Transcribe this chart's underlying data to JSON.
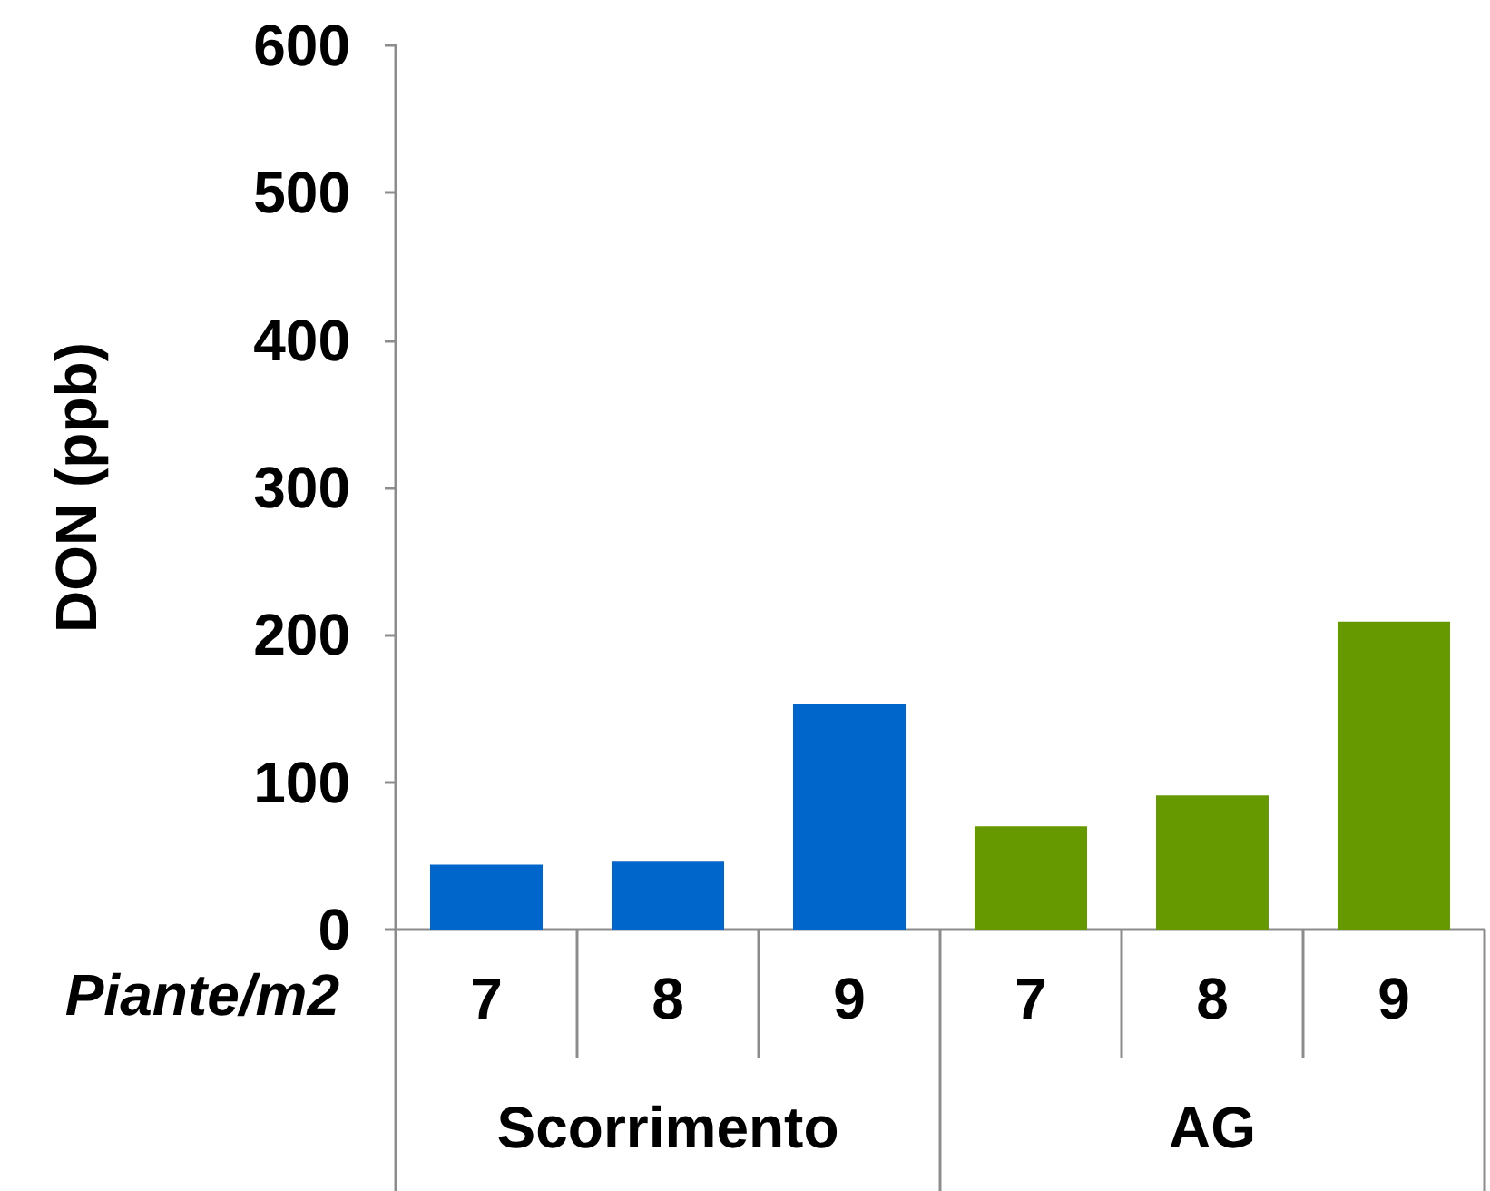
{
  "chart_data": {
    "type": "bar",
    "ylabel": "DON (ppb)",
    "xlabel": "Piante/m2",
    "categories": [
      "7",
      "8",
      "9",
      "7",
      "8",
      "9"
    ],
    "series": [
      {
        "name": "Scorrimento",
        "color": "#0066cc",
        "values": [
          44,
          46,
          153,
          null,
          null,
          null
        ]
      },
      {
        "name": "AG",
        "color": "#669900",
        "values": [
          null,
          null,
          null,
          70,
          91,
          209
        ]
      }
    ],
    "ylim": [
      0,
      600
    ],
    "yticks": [
      0,
      100,
      200,
      300,
      400,
      500,
      600
    ]
  }
}
